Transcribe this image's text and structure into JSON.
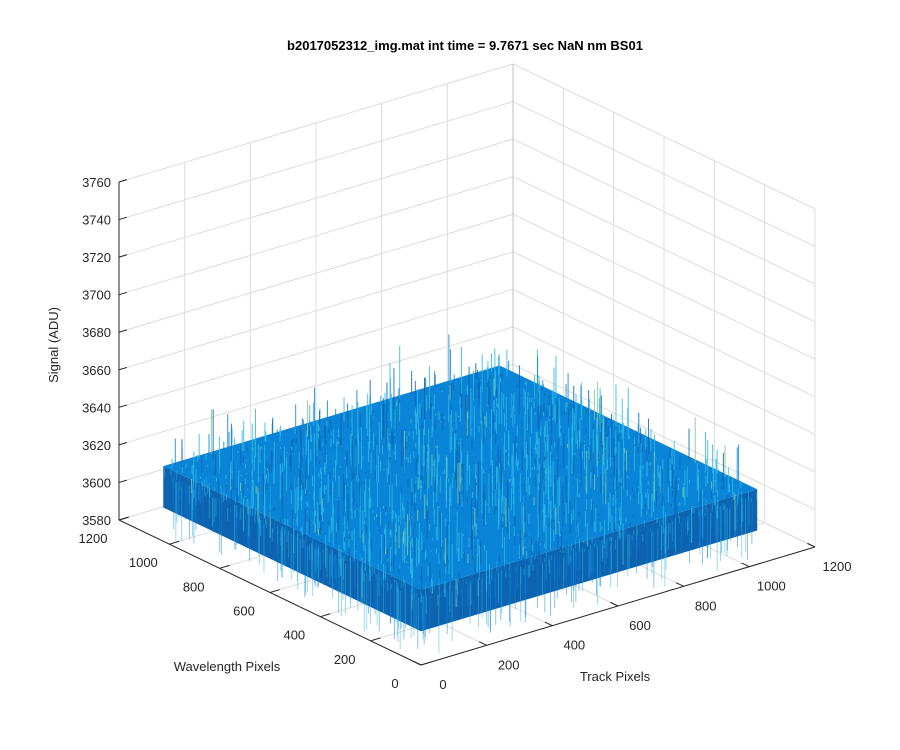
{
  "chart_data": {
    "type": "surface3d",
    "title": "b2017052312_img.mat int time = 9.7671 sec  NaN nm BS01",
    "xlabel": "Track Pixels",
    "ylabel": "Wavelength Pixels",
    "zlabel": "Signal (ADU)",
    "xlim": [
      0,
      1200
    ],
    "ylim": [
      0,
      1200
    ],
    "zlim": [
      3580,
      3760
    ],
    "xticks": [
      "0",
      "200",
      "400",
      "600",
      "800",
      "1000",
      "1200"
    ],
    "yticks": [
      "0",
      "200",
      "400",
      "600",
      "800",
      "1000",
      "1200"
    ],
    "zticks": [
      "3580",
      "3600",
      "3620",
      "3640",
      "3660",
      "3680",
      "3700",
      "3720",
      "3740",
      "3760"
    ],
    "surface": {
      "x_range": [
        0,
        1024
      ],
      "y_range": [
        0,
        1024
      ],
      "mean_signal": 3620,
      "min_signal": 3598,
      "max_signal": 3648,
      "colormap": "parula"
    },
    "grid": true,
    "box": true,
    "colors": {
      "surface_main": "#0a84d6",
      "surface_dark": "#0d63b0",
      "surface_light": "#2bb8e6",
      "surface_highlight": "#7cc79a",
      "axis": "#262626",
      "grid": "#dcdcdc"
    }
  }
}
